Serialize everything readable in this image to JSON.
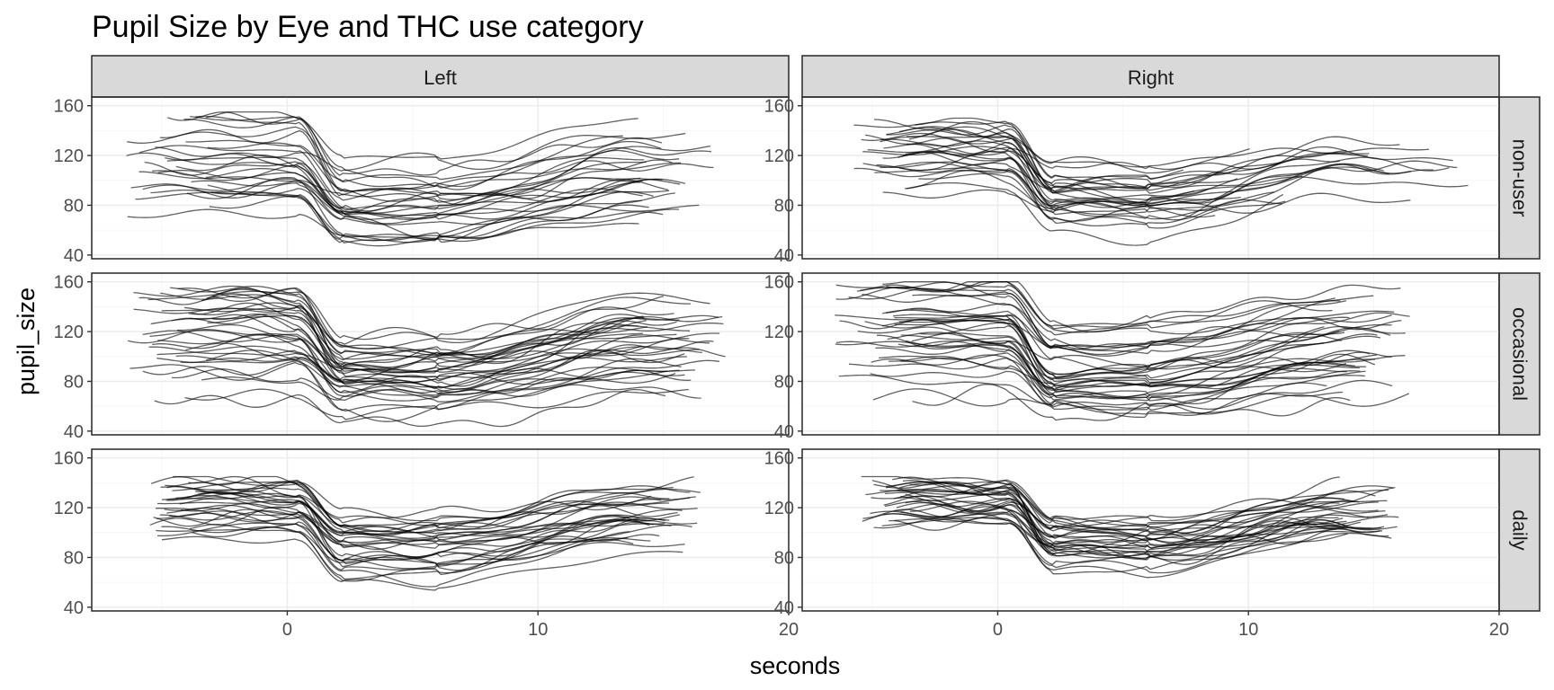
{
  "chart_data": {
    "type": "line",
    "title": "Pupil Size by Eye and THC use category",
    "xlabel": "seconds",
    "ylabel": "pupil_size",
    "xlim": [
      -7.8,
      20
    ],
    "ylim": [
      37,
      167
    ],
    "x_ticks": [
      0,
      10,
      20
    ],
    "y_ticks": [
      40,
      80,
      120,
      160
    ],
    "grid": true,
    "facet_columns": [
      "Left",
      "Right"
    ],
    "facet_rows": [
      "non-user",
      "occasional",
      "daily"
    ],
    "colors": {
      "line": "#000000",
      "strip": "#d9d9d9",
      "grid": "#ebebeb"
    },
    "panels": [
      {
        "eye": "Left",
        "group": "non-user",
        "series_count": 30,
        "baseline_range": [
          70,
          152
        ],
        "x_start_range": [
          -6.5,
          -3
        ],
        "x_end_range": [
          13,
          17
        ],
        "min_dip": 45,
        "max_value": 155
      },
      {
        "eye": "Right",
        "group": "non-user",
        "series_count": 30,
        "baseline_range": [
          76,
          150
        ],
        "x_start_range": [
          -6,
          -3
        ],
        "x_end_range": [
          7,
          18.8
        ],
        "min_dip": 45,
        "max_value": 150
      },
      {
        "eye": "Left",
        "group": "occasional",
        "series_count": 38,
        "baseline_range": [
          60,
          155
        ],
        "x_start_range": [
          -6.5,
          -3
        ],
        "x_end_range": [
          14,
          17.5
        ],
        "min_dip": 43,
        "max_value": 160
      },
      {
        "eye": "Right",
        "group": "occasional",
        "series_count": 40,
        "baseline_range": [
          63,
          158
        ],
        "x_start_range": [
          -6.5,
          -3
        ],
        "x_end_range": [
          13,
          16.5
        ],
        "min_dip": 46,
        "max_value": 160
      },
      {
        "eye": "Left",
        "group": "daily",
        "series_count": 32,
        "baseline_range": [
          90,
          142
        ],
        "x_start_range": [
          -5.5,
          -3.5
        ],
        "x_end_range": [
          13.5,
          16.5
        ],
        "min_dip": 52,
        "max_value": 145
      },
      {
        "eye": "Right",
        "group": "daily",
        "series_count": 32,
        "baseline_range": [
          104,
          142
        ],
        "x_start_range": [
          -5.5,
          -3.5
        ],
        "x_end_range": [
          13.5,
          16
        ],
        "min_dip": 52,
        "max_value": 145
      }
    ]
  }
}
